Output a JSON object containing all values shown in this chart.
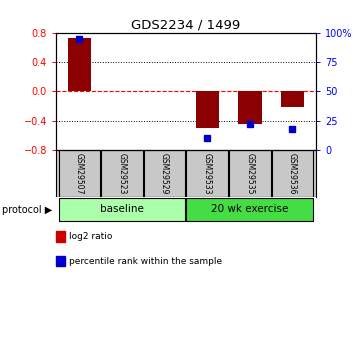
{
  "title": "GDS2234 / 1499",
  "samples": [
    "GSM29507",
    "GSM29523",
    "GSM29529",
    "GSM29533",
    "GSM29535",
    "GSM29536"
  ],
  "log2_ratio": [
    0.73,
    0.0,
    0.0,
    -0.5,
    -0.45,
    -0.22
  ],
  "percentile_rank": [
    95,
    null,
    null,
    10,
    22,
    18
  ],
  "ylim_left": [
    -0.8,
    0.8
  ],
  "ylim_right": [
    0,
    100
  ],
  "yticks_left": [
    -0.8,
    -0.4,
    0,
    0.4,
    0.8
  ],
  "yticks_right": [
    0,
    25,
    50,
    75,
    100
  ],
  "ytick_labels_right": [
    "0",
    "25",
    "50",
    "75",
    "100%"
  ],
  "bar_color": "#8B0000",
  "dot_color": "#0000CC",
  "groups": [
    {
      "label": "baseline",
      "indices": [
        0,
        1,
        2
      ],
      "color": "#AAFFAA"
    },
    {
      "label": "20 wk exercise",
      "indices": [
        3,
        4,
        5
      ],
      "color": "#44DD44"
    }
  ],
  "protocol_label": "protocol",
  "legend_items": [
    {
      "label": "log2 ratio",
      "color": "#CC0000"
    },
    {
      "label": "percentile rank within the sample",
      "color": "#0000CC"
    }
  ],
  "sample_box_color": "#C8C8C8",
  "background_color": "#FFFFFF",
  "grid_color": "#000000",
  "zero_line_color": "#FF0000"
}
